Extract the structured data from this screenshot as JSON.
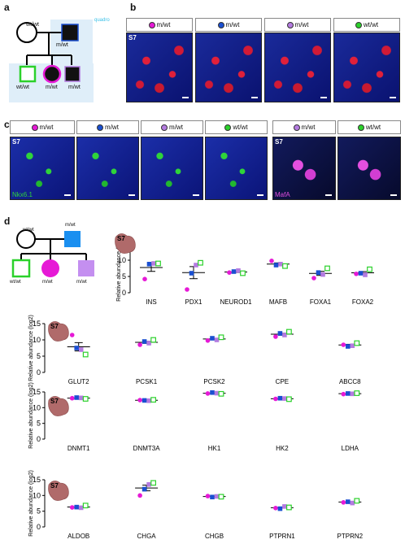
{
  "panels": {
    "a": "a",
    "b": "b",
    "c": "c",
    "d": "d"
  },
  "pedigree_a": {
    "father_label": "wt/wt",
    "mother_label": "m/wt",
    "quadrant_label": "quadro",
    "child1_label": "wt/wt",
    "child2_label": "m/wt",
    "child3_label": "m/wt"
  },
  "colors": {
    "magenta": "#e619d6",
    "blue": "#1a4fd1",
    "violet": "#b47be0",
    "green": "#2bd12b",
    "bg_light": "#dfeef9"
  },
  "panel_b": {
    "headers": [
      {
        "dot": "magenta",
        "text": "m/wt"
      },
      {
        "dot": "blue",
        "text": "m/wt"
      },
      {
        "dot": "violet",
        "text": "m/wt"
      },
      {
        "dot": "green",
        "text": "wt/wt"
      }
    ],
    "stage": "S7"
  },
  "panel_c": {
    "headers": [
      {
        "dot": "magenta",
        "text": "m/wt"
      },
      {
        "dot": "blue",
        "text": "m/wt"
      },
      {
        "dot": "violet",
        "text": "m/wt"
      },
      {
        "dot": "green",
        "text": "wt/wt"
      },
      {
        "dot": "violet",
        "text": "m/wt"
      },
      {
        "dot": "green",
        "text": "wt/wt"
      }
    ],
    "stage": "S7",
    "stain_left": "Nkx6.1",
    "stain_right": "MafA"
  },
  "pedigree_d": {
    "father_label": "wt/wt",
    "mother_label": "m/wt",
    "child1_label": "wt/wt",
    "child2_label": "m/wt",
    "child3_label": "m/wt"
  },
  "chart_data": [
    {
      "type": "scatter",
      "stage": "S7",
      "ylabel": "Relative abundance (log2)",
      "ylim": [
        0,
        15
      ],
      "yticks": [
        0,
        5,
        10,
        15
      ],
      "categories": [
        "INS",
        "PDX1",
        "NEUROD1",
        "MAFB",
        "FOXA1",
        "FOXA2"
      ],
      "series": [
        {
          "color": "magenta",
          "values": [
            4.2,
            1.0,
            6.2,
            9.8,
            4.5,
            5.8
          ]
        },
        {
          "color": "blue",
          "values": [
            8.8,
            6.0,
            6.5,
            8.5,
            6.2,
            6.0
          ]
        },
        {
          "color": "violet",
          "values": [
            9.0,
            8.5,
            6.8,
            8.8,
            5.6,
            5.5
          ]
        },
        {
          "color": "green",
          "values": [
            9.0,
            9.2,
            6.0,
            8.2,
            7.5,
            7.2
          ]
        }
      ]
    },
    {
      "type": "scatter",
      "stage": "S7",
      "ylabel": "Relative abundance (log2)",
      "ylim": [
        0,
        15
      ],
      "yticks": [
        0,
        5,
        10,
        15
      ],
      "categories": [
        "GLUT2",
        "PCSK1",
        "PCSK2",
        "CPE",
        "ABCC8"
      ],
      "series": [
        {
          "color": "magenta",
          "values": [
            11.5,
            8.5,
            9.8,
            11.0,
            8.5
          ]
        },
        {
          "color": "blue",
          "values": [
            7.5,
            9.5,
            10.5,
            12.0,
            8.0
          ]
        },
        {
          "color": "violet",
          "values": [
            7.0,
            9.0,
            10.0,
            11.5,
            8.2
          ]
        },
        {
          "color": "green",
          "values": [
            5.5,
            10.0,
            10.8,
            12.5,
            9.0
          ]
        }
      ]
    },
    {
      "type": "scatter",
      "stage": "S7",
      "ylabel": "Relative abundance (log2)",
      "ylim": [
        0,
        15
      ],
      "yticks": [
        0,
        5,
        10,
        15
      ],
      "categories": [
        "DNMT1",
        "DNMT3A",
        "HK1",
        "HK2",
        "LDHA"
      ],
      "series": [
        {
          "color": "magenta",
          "values": [
            13.0,
            12.4,
            14.5,
            12.8,
            14.3
          ]
        },
        {
          "color": "blue",
          "values": [
            13.2,
            12.3,
            14.8,
            13.0,
            14.5
          ]
        },
        {
          "color": "violet",
          "values": [
            13.1,
            12.2,
            14.6,
            12.9,
            14.4
          ]
        },
        {
          "color": "green",
          "values": [
            12.8,
            12.5,
            14.4,
            12.7,
            14.6
          ]
        }
      ]
    },
    {
      "type": "scatter",
      "stage": "S7",
      "ylabel": "Relative abundance (log2)",
      "ylim": [
        0,
        15
      ],
      "yticks": [
        0,
        5,
        10,
        15
      ],
      "categories": [
        "ALDOB",
        "CHGA",
        "CHGB",
        "PTPRN1",
        "PTPRN2"
      ],
      "series": [
        {
          "color": "magenta",
          "values": [
            6.2,
            10.0,
            9.8,
            6.0,
            7.8
          ]
        },
        {
          "color": "blue",
          "values": [
            6.3,
            12.0,
            9.5,
            5.8,
            8.0
          ]
        },
        {
          "color": "violet",
          "values": [
            6.1,
            13.5,
            9.7,
            6.5,
            7.6
          ]
        },
        {
          "color": "green",
          "values": [
            6.8,
            14.0,
            9.6,
            6.2,
            8.3
          ]
        }
      ]
    }
  ]
}
